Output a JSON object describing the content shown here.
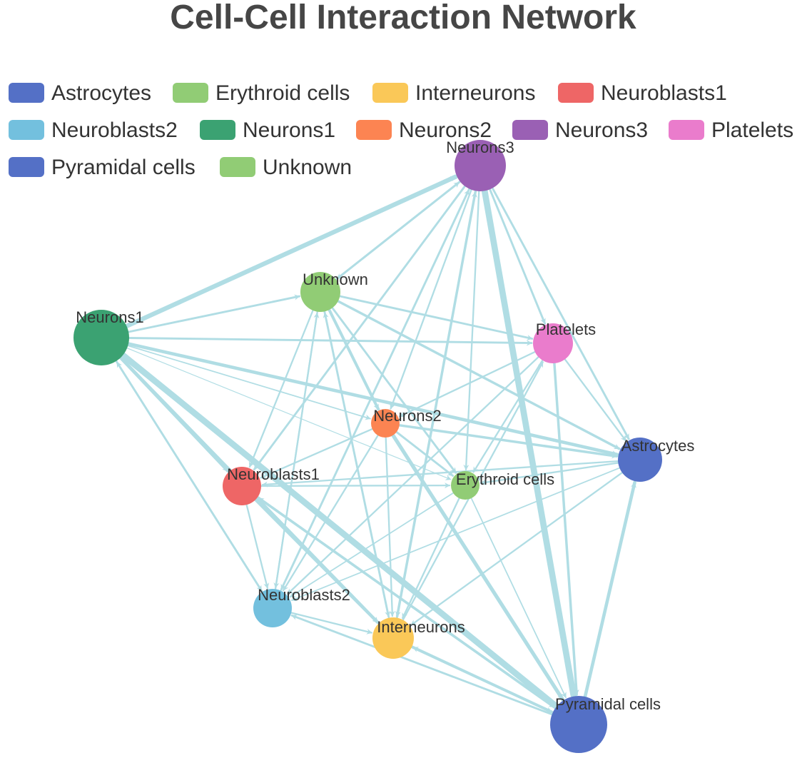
{
  "title": "Cell-Cell Interaction Network",
  "colors": {
    "edge": "#b0dde4",
    "legend_text": "#333333",
    "title": "#464646"
  },
  "legend": {
    "items": [
      {
        "name": "Astrocytes",
        "color": "#5470c6"
      },
      {
        "name": "Erythroid cells",
        "color": "#91cc75"
      },
      {
        "name": "Interneurons",
        "color": "#fac858"
      },
      {
        "name": "Neuroblasts1",
        "color": "#ee6666"
      },
      {
        "name": "Neuroblasts2",
        "color": "#73c0de"
      },
      {
        "name": "Neurons1",
        "color": "#3ba272"
      },
      {
        "name": "Neurons2",
        "color": "#fc8452"
      },
      {
        "name": "Neurons3",
        "color": "#9a60b4"
      },
      {
        "name": "Platelets",
        "color": "#ea7ccc"
      },
      {
        "name": "Pyramidal cells",
        "color": "#5470c6"
      },
      {
        "name": "Unknown",
        "color": "#91cc75"
      }
    ]
  },
  "chart_data": {
    "type": "network",
    "nodes": [
      {
        "name": "Neurons3",
        "label": "Neurons3",
        "color": "#9a60b4",
        "size": 5
      },
      {
        "name": "Unknown",
        "label": "Unknown",
        "color": "#91cc75",
        "size": 3
      },
      {
        "name": "Neurons1",
        "label": "Neurons1",
        "color": "#3ba272",
        "size": 5
      },
      {
        "name": "Platelets",
        "label": "Platelets",
        "color": "#ea7ccc",
        "size": 3
      },
      {
        "name": "Neurons2",
        "label": "Neurons2",
        "color": "#fc8452",
        "size": 2
      },
      {
        "name": "Astrocytes",
        "label": "Astrocytes",
        "color": "#5470c6",
        "size": 3.5
      },
      {
        "name": "Neuroblasts1",
        "label": "Neuroblasts1",
        "color": "#ee6666",
        "size": 3
      },
      {
        "name": "Erythroid cells",
        "label": "Erythroid cells",
        "color": "#91cc75",
        "size": 2
      },
      {
        "name": "Neuroblasts2",
        "label": "Neuroblasts2",
        "color": "#73c0de",
        "size": 3
      },
      {
        "name": "Interneurons",
        "label": "Interneurons",
        "color": "#fac858",
        "size": 3203
      },
      {
        "name": "Pyramidal cells",
        "label": "Pyramidal cells",
        "color": "#5470c6",
        "size": 5
      }
    ],
    "edges": [
      {
        "source": "Neurons1",
        "target": "Neurons3",
        "weight": 5
      },
      {
        "source": "Neurons1",
        "target": "Unknown",
        "weight": 2
      },
      {
        "source": "Neurons1",
        "target": "Platelets",
        "weight": 2
      },
      {
        "source": "Neurons1",
        "target": "Astrocytes",
        "weight": 3.5
      },
      {
        "source": "Neurons1",
        "target": "Neuroblasts1",
        "weight": 3
      },
      {
        "source": "Neurons1",
        "target": "Neuroblasts2",
        "weight": 2
      },
      {
        "source": "Neurons1",
        "target": "Interneurons",
        "weight": 3
      },
      {
        "source": "Neurons1",
        "target": "Pyramidal cells",
        "weight": 7
      },
      {
        "source": "Neurons1",
        "target": "Neurons2",
        "weight": 1
      },
      {
        "source": "Neurons1",
        "target": "Erythroid cells",
        "weight": 0.5
      },
      {
        "source": "Unknown",
        "target": "Neurons3",
        "weight": 2
      },
      {
        "source": "Unknown",
        "target": "Platelets",
        "weight": 2
      },
      {
        "source": "Unknown",
        "target": "Neurons2",
        "weight": 3
      },
      {
        "source": "Unknown",
        "target": "Astrocytes",
        "weight": 2.5
      },
      {
        "source": "Unknown",
        "target": "Interneurons",
        "weight": 2
      },
      {
        "source": "Unknown",
        "target": "Neuroblasts1",
        "weight": 1.5
      },
      {
        "source": "Unknown",
        "target": "Neuroblasts2",
        "weight": 1.5
      },
      {
        "source": "Unknown",
        "target": "Erythroid cells",
        "weight": 2
      },
      {
        "source": "Neurons3",
        "target": "Platelets",
        "weight": 2
      },
      {
        "source": "Neurons3",
        "target": "Astrocytes",
        "weight": 2
      },
      {
        "source": "Neurons3",
        "target": "Pyramidal cells",
        "weight": 7
      },
      {
        "source": "Neurons3",
        "target": "Neurons2",
        "weight": 1.5
      },
      {
        "source": "Neurons3",
        "target": "Neuroblasts1",
        "weight": 2
      },
      {
        "source": "Neurons3",
        "target": "Neuroblasts2",
        "weight": 2
      },
      {
        "source": "Neurons3",
        "target": "Interneurons",
        "weight": 2.5
      },
      {
        "source": "Neurons3",
        "target": "Erythroid cells",
        "weight": 1.5
      },
      {
        "source": "Neurons3",
        "target": "Unknown",
        "weight": 2
      },
      {
        "source": "Platelets",
        "target": "Astrocytes",
        "weight": 1.5
      },
      {
        "source": "Platelets",
        "target": "Pyramidal cells",
        "weight": 2.5
      },
      {
        "source": "Platelets",
        "target": "Neuroblasts2",
        "weight": 1.5
      },
      {
        "source": "Platelets",
        "target": "Erythroid cells",
        "weight": 1.5
      },
      {
        "source": "Platelets",
        "target": "Neurons2",
        "weight": 1.5
      },
      {
        "source": "Neurons2",
        "target": "Astrocytes",
        "weight": 2.5
      },
      {
        "source": "Neurons2",
        "target": "Erythroid cells",
        "weight": 2
      },
      {
        "source": "Neurons2",
        "target": "Pyramidal cells",
        "weight": 4
      },
      {
        "source": "Neurons2",
        "target": "Neuroblasts1",
        "weight": 1.5
      },
      {
        "source": "Neurons2",
        "target": "Neuroblasts2",
        "weight": 1.5
      },
      {
        "source": "Neurons2",
        "target": "Interneurons",
        "weight": 1.5
      },
      {
        "source": "Astrocytes",
        "target": "Neuroblasts1",
        "weight": 1.5
      },
      {
        "source": "Astrocytes",
        "target": "Erythroid cells",
        "weight": 1.5
      },
      {
        "source": "Astrocytes",
        "target": "Neuroblasts2",
        "weight": 1
      },
      {
        "source": "Astrocytes",
        "target": "Interneurons",
        "weight": 1.5
      },
      {
        "source": "Pyramidal cells",
        "target": "Astrocytes",
        "weight": 3.5
      },
      {
        "source": "Neuroblasts1",
        "target": "Neuroblasts2",
        "weight": 1.5
      },
      {
        "source": "Neuroblasts1",
        "target": "Interneurons",
        "weight": 3
      },
      {
        "source": "Neuroblasts1",
        "target": "Pyramidal cells",
        "weight": 2.5
      },
      {
        "source": "Neuroblasts1",
        "target": "Erythroid cells",
        "weight": 1.5
      },
      {
        "source": "Erythroid cells",
        "target": "Pyramidal cells",
        "weight": 1
      },
      {
        "source": "Erythroid cells",
        "target": "Neuroblasts2",
        "weight": 1
      },
      {
        "source": "Erythroid cells",
        "target": "Interneurons",
        "weight": 1.5
      },
      {
        "source": "Neuroblasts2",
        "target": "Interneurons",
        "weight": 1.5
      },
      {
        "source": "Interneurons",
        "target": "Pyramidal cells",
        "weight": 3
      },
      {
        "source": "Pyramidal cells",
        "target": "Neuroblasts2",
        "weight": 2
      },
      {
        "source": "Pyramidal cells",
        "target": "Interneurons",
        "weight": 2
      },
      {
        "source": "Pyramidal cells",
        "target": "Neuroblasts1",
        "weight": 2.5
      },
      {
        "source": "Pyramidal cells",
        "target": "Neurons1",
        "weight": 4
      },
      {
        "source": "Interneurons",
        "target": "Neurons3",
        "weight": 2
      },
      {
        "source": "Neuroblasts2",
        "target": "Neurons3",
        "weight": 1.5
      },
      {
        "source": "Neuroblasts2",
        "target": "Neurons1",
        "weight": 1.5
      },
      {
        "source": "Neuroblasts2",
        "target": "Unknown",
        "weight": 1.5
      },
      {
        "source": "Interneurons",
        "target": "Unknown",
        "weight": 1.5
      },
      {
        "source": "Interneurons",
        "target": "Platelets",
        "weight": 1.5
      }
    ]
  }
}
